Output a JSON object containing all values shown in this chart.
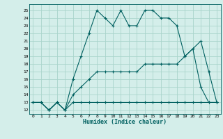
{
  "xlabel": "Humidex (Indice chaleur)",
  "bg_color": "#d4eeea",
  "line_color": "#006060",
  "grid_color": "#aad4cc",
  "xlim": [
    -0.5,
    23.5
  ],
  "ylim": [
    11.5,
    25.8
  ],
  "xticks": [
    0,
    1,
    2,
    3,
    4,
    5,
    6,
    7,
    8,
    9,
    10,
    11,
    12,
    13,
    14,
    15,
    16,
    17,
    18,
    19,
    20,
    21,
    22,
    23
  ],
  "yticks": [
    12,
    13,
    14,
    15,
    16,
    17,
    18,
    19,
    20,
    21,
    22,
    23,
    24,
    25
  ],
  "curve1_x": [
    0,
    1,
    2,
    3,
    4,
    5,
    6,
    7,
    8,
    9,
    10,
    11,
    12,
    13,
    14,
    15,
    16,
    17,
    18,
    19,
    20,
    21,
    22,
    23
  ],
  "curve1_y": [
    13,
    13,
    12,
    13,
    12,
    16,
    19,
    22,
    25,
    24,
    23,
    25,
    23,
    23,
    25,
    25,
    24,
    24,
    23,
    19,
    20,
    21,
    17,
    13
  ],
  "curve2_x": [
    0,
    1,
    2,
    3,
    4,
    5,
    6,
    7,
    8,
    9,
    10,
    11,
    12,
    13,
    14,
    15,
    16,
    17,
    18,
    19,
    20,
    21,
    22,
    23
  ],
  "curve2_y": [
    13,
    13,
    12,
    13,
    12,
    14,
    15,
    16,
    17,
    17,
    17,
    17,
    17,
    17,
    18,
    18,
    18,
    18,
    18,
    19,
    20,
    15,
    13,
    13
  ],
  "curve3_x": [
    0,
    1,
    2,
    3,
    4,
    5,
    6,
    7,
    8,
    9,
    10,
    11,
    12,
    13,
    14,
    15,
    16,
    17,
    18,
    19,
    20,
    21,
    22,
    23
  ],
  "curve3_y": [
    13,
    13,
    12,
    13,
    12,
    13,
    13,
    13,
    13,
    13,
    13,
    13,
    13,
    13,
    13,
    13,
    13,
    13,
    13,
    13,
    13,
    13,
    13,
    13
  ]
}
